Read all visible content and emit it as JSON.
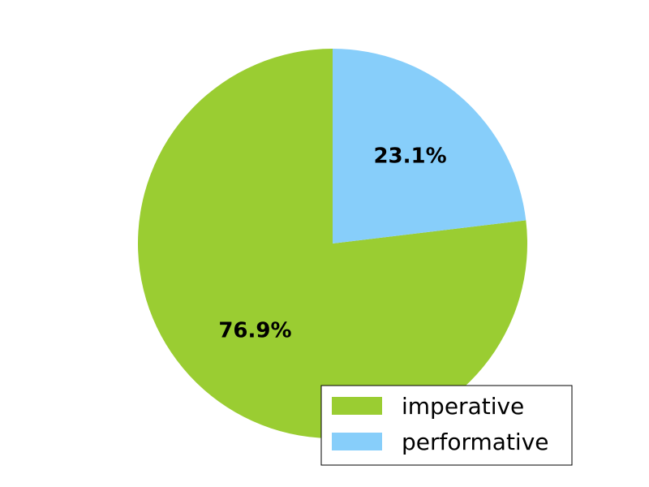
{
  "chart_data": {
    "type": "pie",
    "title": "",
    "categories": [
      "imperative",
      "performative"
    ],
    "values": [
      76.9,
      23.1
    ],
    "labels": [
      "76.9%",
      "23.1%"
    ],
    "colors": [
      "#9acd32",
      "#87cefa"
    ],
    "start_angle": 90,
    "direction": "counterclockwise",
    "legend": {
      "placement": "bottom-right",
      "entries": [
        "imperative",
        "performative"
      ]
    }
  }
}
